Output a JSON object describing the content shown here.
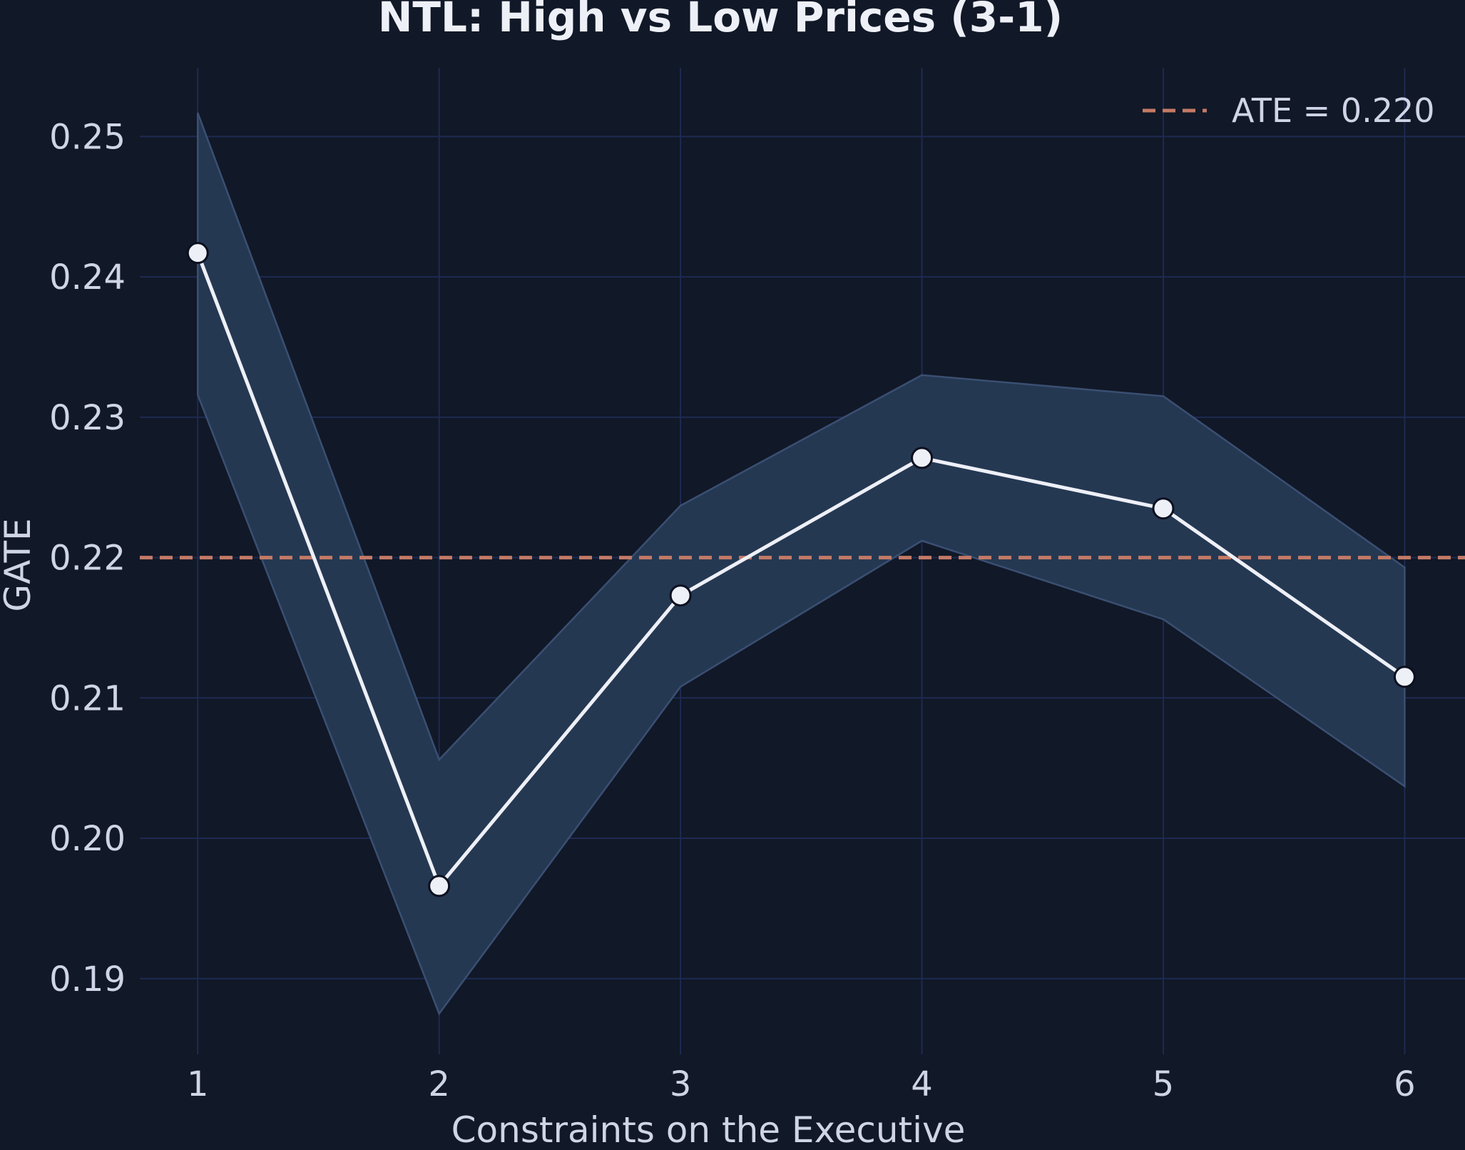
{
  "chart_data": {
    "type": "line",
    "title": "NTL: High vs Low Prices (3-1)",
    "xlabel": "Constraints on the Executive",
    "ylabel": "GATE",
    "x": [
      1,
      2,
      3,
      4,
      5,
      6
    ],
    "x_tick_labels": [
      "1",
      "2",
      "3",
      "4",
      "5",
      "6"
    ],
    "y_ticks": [
      0.19,
      0.2,
      0.21,
      0.22,
      0.23,
      0.24,
      0.25
    ],
    "y_tick_labels": [
      "0.19",
      "0.20",
      "0.21",
      "0.22",
      "0.23",
      "0.24",
      "0.25"
    ],
    "xlim": [
      0.76,
      6.25
    ],
    "ylim": [
      0.1846,
      0.2549
    ],
    "series": [
      {
        "values": [
          0.2417,
          0.1966,
          0.2173,
          0.2271,
          0.2235,
          0.2115
        ],
        "ci_lower": [
          0.2316,
          0.1875,
          0.2108,
          0.2212,
          0.2156,
          0.2037
        ],
        "ci_upper": [
          0.2517,
          0.2056,
          0.2237,
          0.233,
          0.2315,
          0.2193
        ]
      }
    ],
    "reference_line": {
      "value": 0.22,
      "label": "ATE = 0.220",
      "style": "dashed"
    },
    "legend": {
      "placement": "top-right",
      "entries": [
        "ATE = 0.220"
      ]
    },
    "grid": true,
    "colors": {
      "background": "#111827",
      "grid": "#1e2a52",
      "line": "#eef0f8",
      "marker_fill": "#eef0f8",
      "marker_edge": "#0b1020",
      "band_fill": "#253852",
      "band_edge": "#3a4f72",
      "reference": "#c47a66",
      "text": "#cfd4e6",
      "title": "#eef0f8"
    }
  }
}
